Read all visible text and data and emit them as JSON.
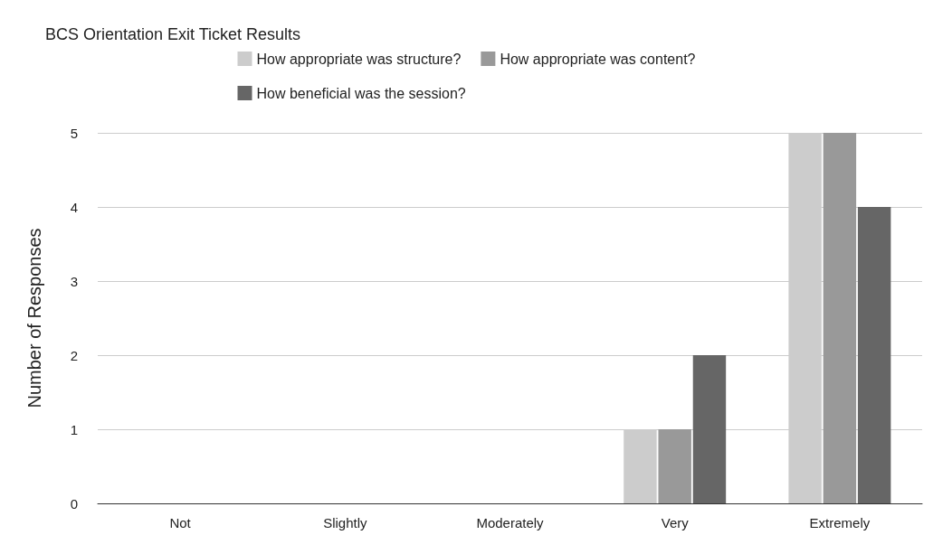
{
  "chart_data": {
    "type": "bar",
    "title": "BCS Orientation Exit Ticket Results",
    "ylabel": "Number of Responses",
    "categories": [
      "Not",
      "Slightly",
      "Moderately",
      "Very",
      "Extremely"
    ],
    "series": [
      {
        "name": "How appropriate was structure?",
        "color": "#cccccc",
        "values": [
          0,
          0,
          0,
          1,
          5
        ]
      },
      {
        "name": "How appropriate was content?",
        "color": "#999999",
        "values": [
          0,
          0,
          0,
          1,
          5
        ]
      },
      {
        "name": "How beneficial was the session?",
        "color": "#666666",
        "values": [
          0,
          0,
          0,
          2,
          4
        ]
      }
    ],
    "ylim": [
      0,
      5
    ],
    "yticks": [
      0,
      1,
      2,
      3,
      4,
      5
    ],
    "grid": "y",
    "legend": "top"
  }
}
